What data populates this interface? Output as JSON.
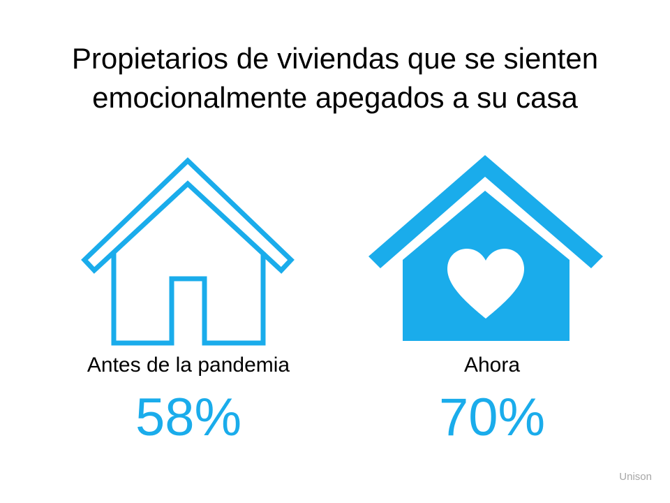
{
  "title": {
    "line1": "Propietarios de viviendas que se sienten",
    "line2": "emocionalmente apegados a su casa"
  },
  "stats": [
    {
      "label": "Antes de la pandemia",
      "value": "58%",
      "icon": "house-outline-icon"
    },
    {
      "label": "Ahora",
      "value": "70%",
      "icon": "house-heart-icon"
    }
  ],
  "source": "Unison",
  "colors": {
    "accent": "#1aaceb",
    "text": "#000000",
    "source": "#a6a6a6"
  }
}
